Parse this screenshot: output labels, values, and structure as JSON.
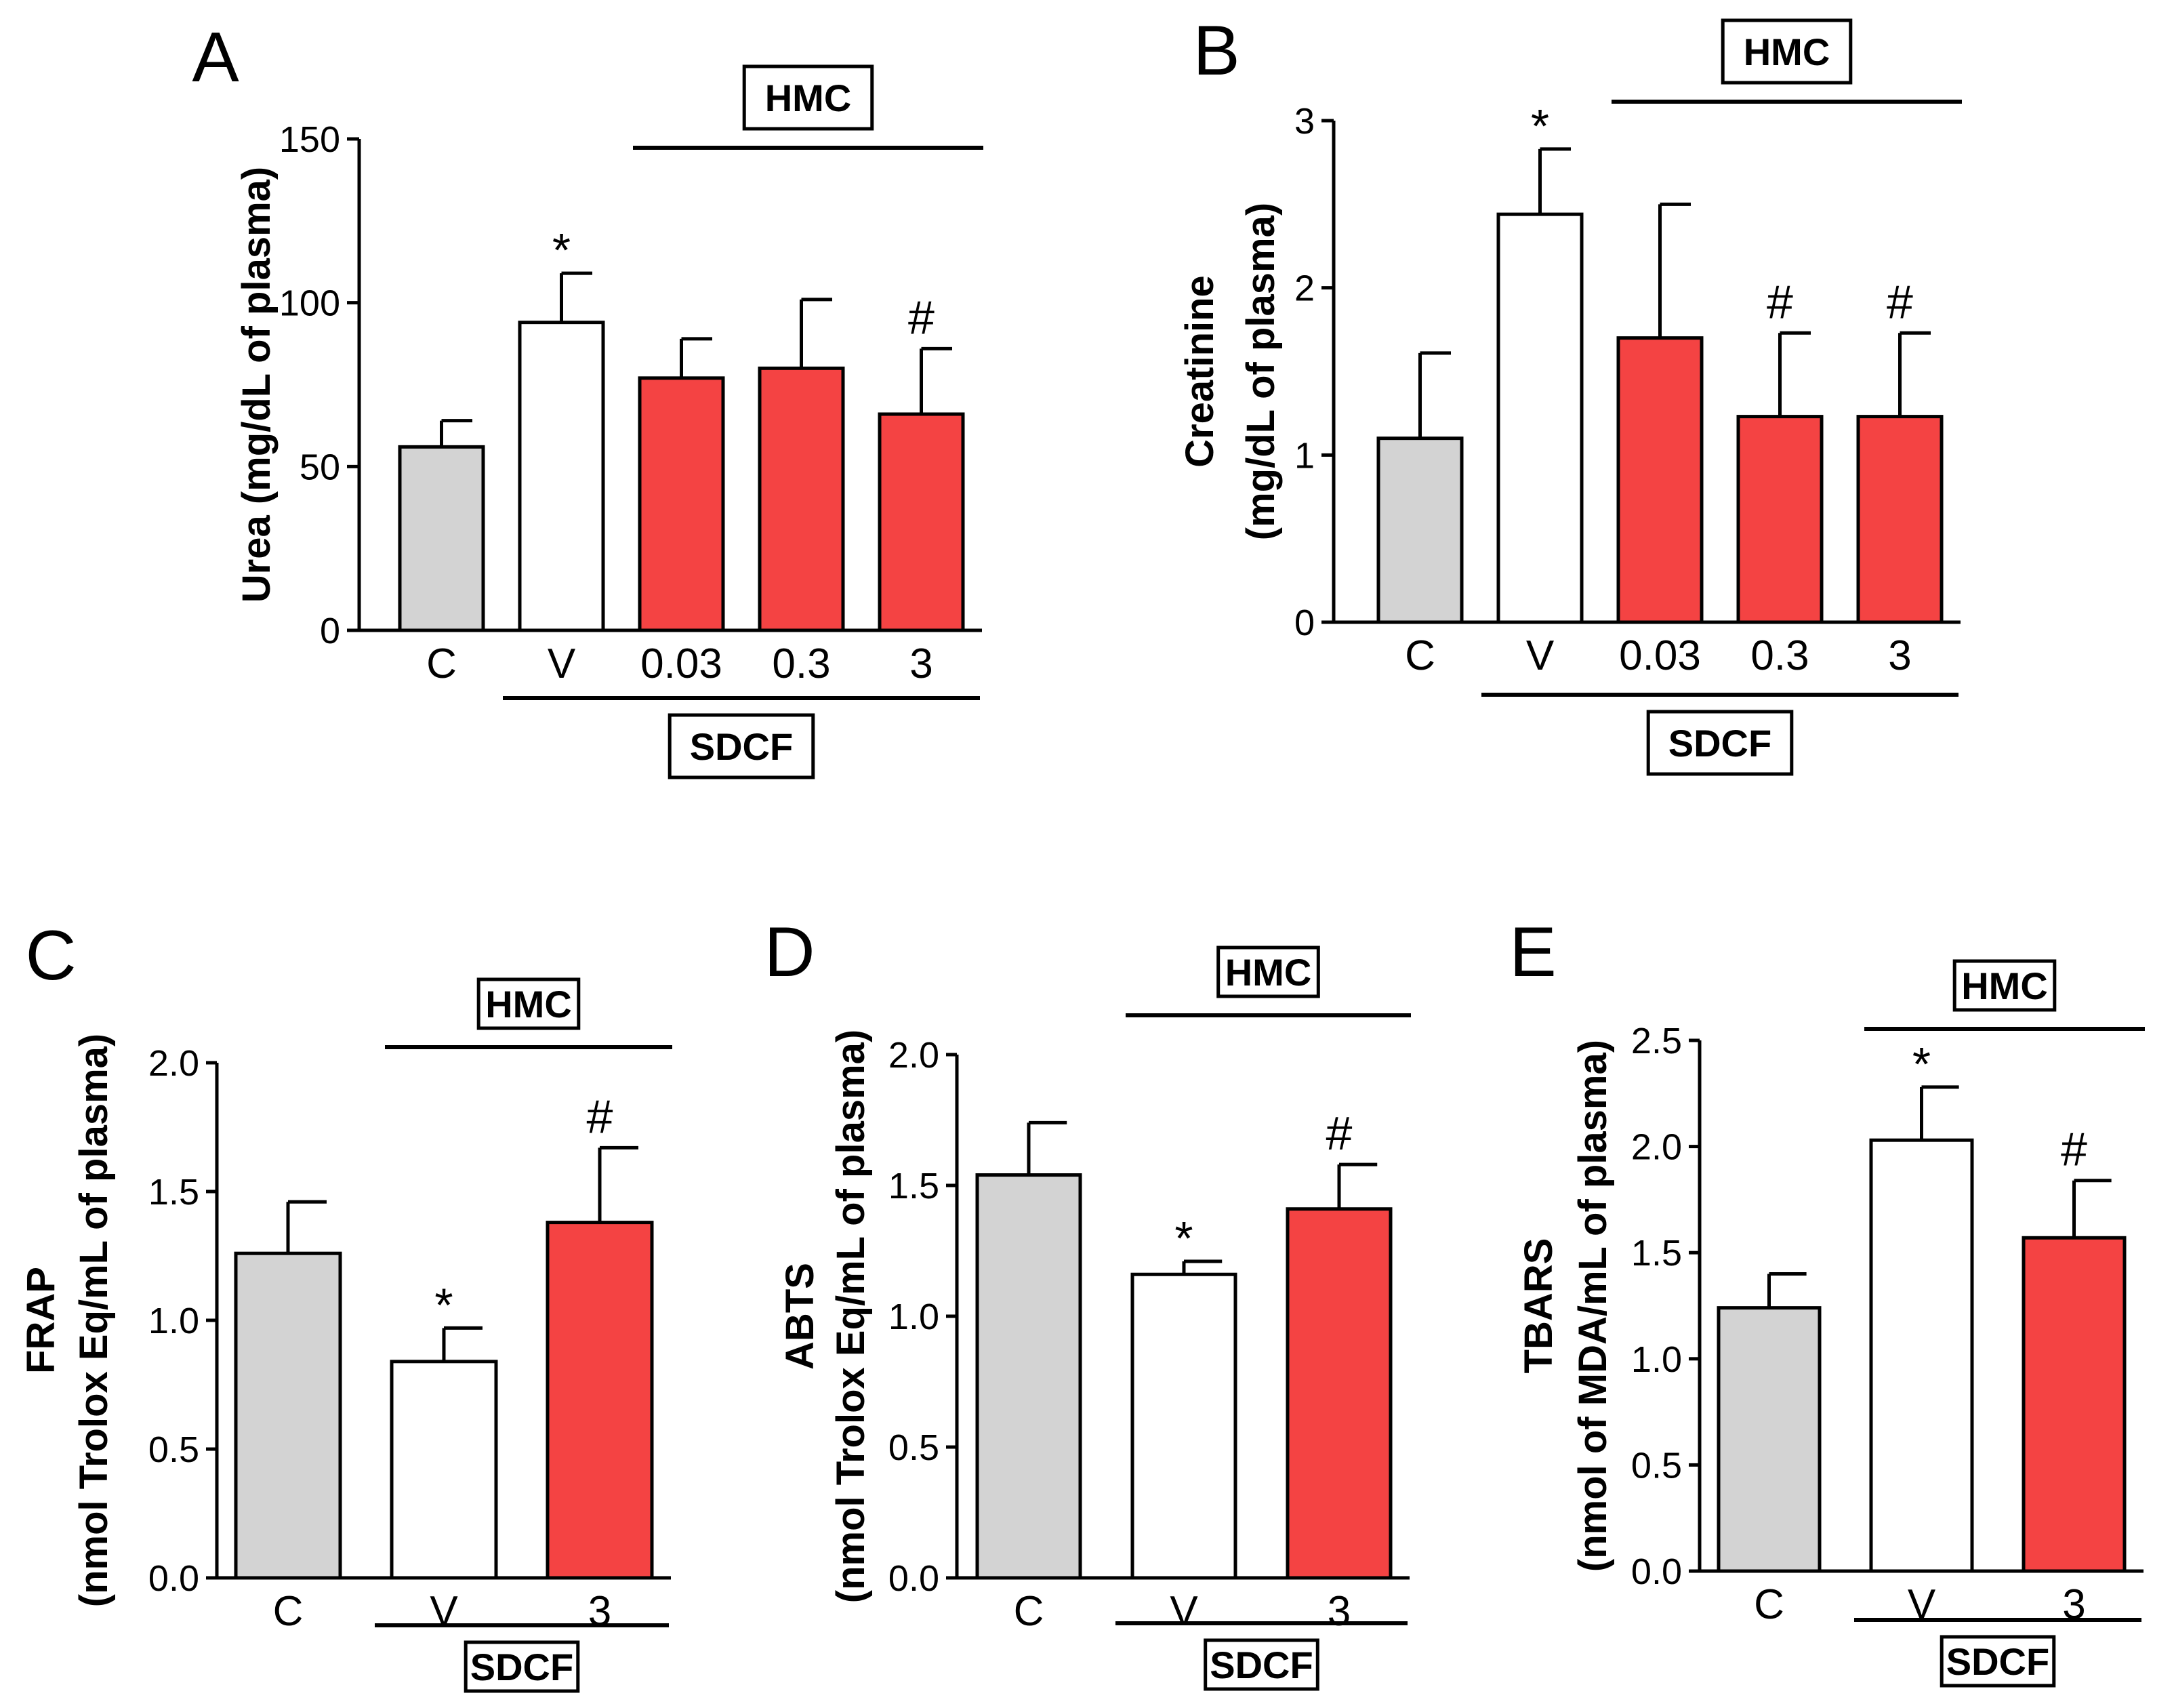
{
  "colors": {
    "control": "#d3d3d3",
    "vehicle": "#ffffff",
    "treated": "#f44343",
    "stroke": "#000000"
  },
  "chart_data": [
    {
      "panel": "A",
      "type": "bar",
      "ylabel": "Urea (mg/dL of plasma)",
      "ylabel_lines": [
        "Urea (mg/dL of plasma)"
      ],
      "ylim": [
        0,
        150
      ],
      "yticks": [
        "0",
        "50",
        "100",
        "150"
      ],
      "categories": [
        "C",
        "V",
        "0.03",
        "0.3",
        "3"
      ],
      "values": [
        56,
        94,
        77,
        80,
        66
      ],
      "errors": [
        8,
        15,
        12,
        21,
        20
      ],
      "groups": [
        "control",
        "vehicle",
        "treated",
        "treated",
        "treated"
      ],
      "annotations": [
        "",
        "*",
        "",
        "",
        "#"
      ],
      "top_bracket": {
        "label": "HMC",
        "from": 2,
        "to": 4
      },
      "bottom_bracket": {
        "label": "SDCF",
        "from": 1,
        "to": 4
      }
    },
    {
      "panel": "B",
      "type": "bar",
      "ylabel": "Creatinine (mg/dL of plasma)",
      "ylabel_lines": [
        "Creatinine",
        "(mg/dL of plasma)"
      ],
      "ylim": [
        0,
        3
      ],
      "yticks": [
        "0",
        "1",
        "2",
        "3"
      ],
      "categories": [
        "C",
        "V",
        "0.03",
        "0.3",
        "3"
      ],
      "values": [
        1.1,
        2.44,
        1.7,
        1.23,
        1.23
      ],
      "errors": [
        0.51,
        0.39,
        0.8,
        0.5,
        0.5
      ],
      "groups": [
        "control",
        "vehicle",
        "treated",
        "treated",
        "treated"
      ],
      "annotations": [
        "",
        "*",
        "",
        "#",
        "#"
      ],
      "top_bracket": {
        "label": "HMC",
        "from": 2,
        "to": 4
      },
      "bottom_bracket": {
        "label": "SDCF",
        "from": 1,
        "to": 4
      }
    },
    {
      "panel": "C",
      "type": "bar",
      "ylabel": "FRAP (nmol Trolox Eq/mL of plasma)",
      "ylabel_lines": [
        "FRAP",
        "(nmol Trolox Eq/mL of plasma)"
      ],
      "ylim": [
        0,
        2
      ],
      "yticks": [
        "0.0",
        "0.5",
        "1.0",
        "1.5",
        "2.0"
      ],
      "categories": [
        "C",
        "V",
        "3"
      ],
      "values": [
        1.26,
        0.84,
        1.38
      ],
      "errors": [
        0.2,
        0.13,
        0.29
      ],
      "groups": [
        "control",
        "vehicle",
        "treated"
      ],
      "annotations": [
        "",
        "*",
        "#"
      ],
      "top_bracket": {
        "label": "HMC",
        "from": 1,
        "to": 2
      },
      "bottom_bracket": {
        "label": "SDCF",
        "from": 1,
        "to": 2
      }
    },
    {
      "panel": "D",
      "type": "bar",
      "ylabel": "ABTS (nmol Trolox Eq/mL of plasma)",
      "ylabel_lines": [
        "ABTS",
        "(nmol Trolox Eq/mL of plasma)"
      ],
      "ylim": [
        0,
        2
      ],
      "yticks": [
        "0.0",
        "0.5",
        "1.0",
        "1.5",
        "2.0"
      ],
      "categories": [
        "C",
        "V",
        "3"
      ],
      "values": [
        1.54,
        1.16,
        1.41
      ],
      "errors": [
        0.2,
        0.05,
        0.17
      ],
      "groups": [
        "control",
        "vehicle",
        "treated"
      ],
      "annotations": [
        "",
        "*",
        "#"
      ],
      "top_bracket": {
        "label": "HMC",
        "from": 1,
        "to": 2
      },
      "bottom_bracket": {
        "label": "SDCF",
        "from": 1,
        "to": 2
      }
    },
    {
      "panel": "E",
      "type": "bar",
      "ylabel": "TBARS (nmol of MDA/mL of plasma)",
      "ylabel_lines": [
        "TBARS",
        "(nmol of MDA/mL of plasma)"
      ],
      "ylim": [
        0,
        2.5
      ],
      "yticks": [
        "0.0",
        "0.5",
        "1.0",
        "1.5",
        "2.0",
        "2.5"
      ],
      "categories": [
        "C",
        "V",
        "3"
      ],
      "values": [
        1.24,
        2.03,
        1.57
      ],
      "errors": [
        0.16,
        0.25,
        0.27
      ],
      "groups": [
        "control",
        "vehicle",
        "treated"
      ],
      "annotations": [
        "",
        "*",
        "#"
      ],
      "top_bracket": {
        "label": "HMC",
        "from": 1,
        "to": 2
      },
      "bottom_bracket": {
        "label": "SDCF",
        "from": 1,
        "to": 2
      }
    }
  ]
}
